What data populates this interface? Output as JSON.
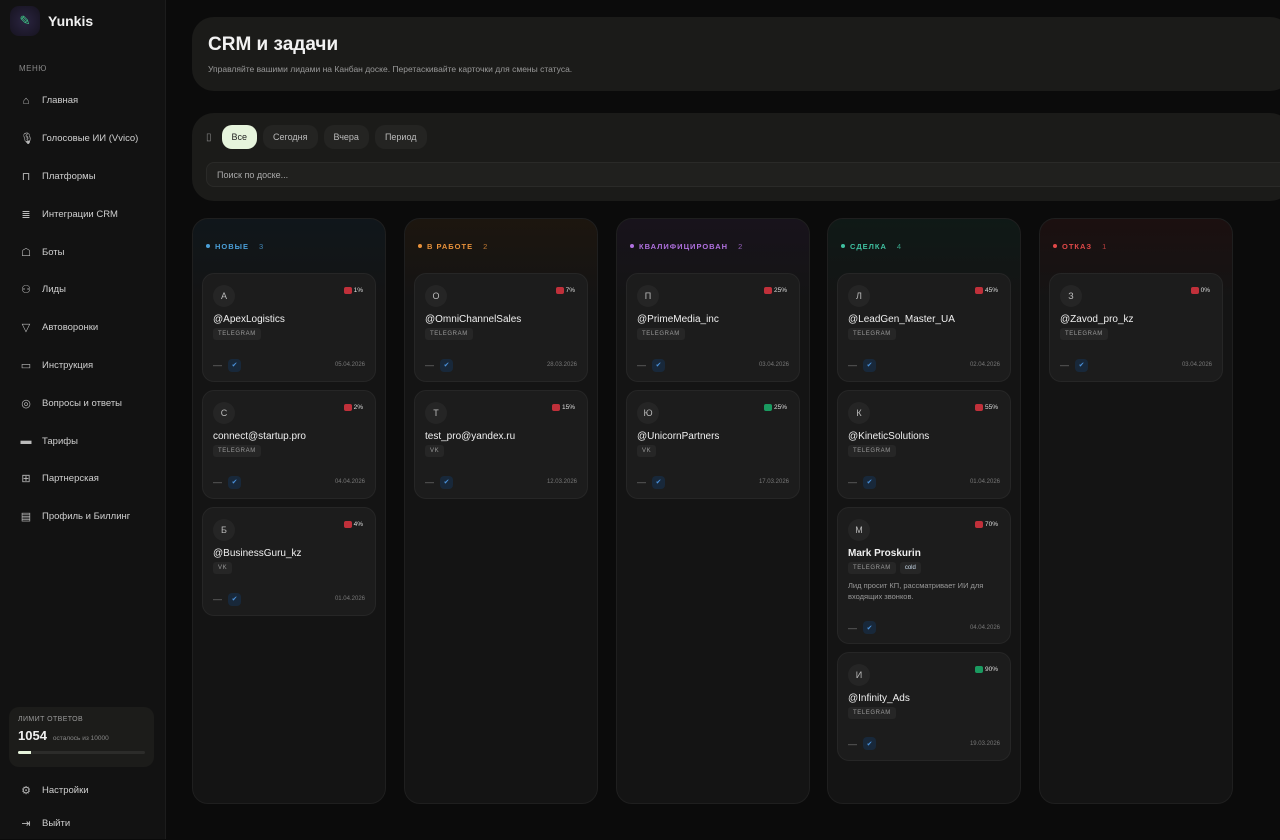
{
  "app": {
    "name": "Yunkis"
  },
  "sidebar": {
    "menu_label": "МЕНЮ",
    "items": [
      {
        "label": "Главная",
        "icon": "home-icon"
      },
      {
        "label": "Голосовые ИИ (Vvico)",
        "icon": "microphone-icon"
      },
      {
        "label": "Платформы",
        "icon": "bag-icon"
      },
      {
        "label": "Интеграции CRM",
        "icon": "database-icon"
      },
      {
        "label": "Боты",
        "icon": "bot-icon"
      },
      {
        "label": "Лиды",
        "icon": "users-icon"
      },
      {
        "label": "Автоворонки",
        "icon": "funnel-icon"
      },
      {
        "label": "Инструкция",
        "icon": "book-icon"
      },
      {
        "label": "Вопросы и ответы",
        "icon": "help-icon"
      },
      {
        "label": "Тарифы",
        "icon": "card-icon"
      },
      {
        "label": "Партнерская",
        "icon": "partner-icon"
      },
      {
        "label": "Профиль и Биллинг",
        "icon": "document-icon"
      }
    ],
    "limit": {
      "label": "ЛИМИТ ОТВЕТОВ",
      "value": "1054",
      "sub": "осталось из 10000",
      "progress_percent": 10.5,
      "color": "#e6f4dc"
    },
    "settings": "Настройки",
    "logout": "Выйти"
  },
  "header": {
    "title": "CRM и задачи",
    "subtitle": "Управляйте вашими лидами на Канбан доске. Перетаскивайте карточки для смены статуса."
  },
  "filters": {
    "chips": [
      "Все",
      "Сегодня",
      "Вчера",
      "Период"
    ],
    "active": 0,
    "search_placeholder": "Поиск по доске..."
  },
  "columns": [
    {
      "title": "НОВЫЕ",
      "count": "3",
      "color": "#4a9fd8",
      "cards": [
        {
          "initial": "А",
          "name": "@ApexLogistics",
          "tags": [
            "TELEGRAM"
          ],
          "percent": "1%",
          "date": "05.04.2026",
          "hot": true
        },
        {
          "initial": "С",
          "name": "connect@startup.pro",
          "tags": [
            "TELEGRAM"
          ],
          "percent": "2%",
          "date": "04.04.2026",
          "hot": true
        },
        {
          "initial": "Б",
          "name": "@BusinessGuru_kz",
          "tags": [
            "VK"
          ],
          "percent": "4%",
          "date": "01.04.2026",
          "hot": true
        }
      ]
    },
    {
      "title": "В РАБОТЕ",
      "count": "2",
      "color": "#e8913a",
      "cards": [
        {
          "initial": "О",
          "name": "@OmniChannelSales",
          "tags": [
            "TELEGRAM"
          ],
          "percent": "7%",
          "date": "28.03.2026",
          "hot": true
        },
        {
          "initial": "Т",
          "name": "test_pro@yandex.ru",
          "tags": [
            "VK"
          ],
          "percent": "15%",
          "date": "12.03.2026",
          "hot": true
        }
      ]
    },
    {
      "title": "КВАЛИФИЦИРОВАН",
      "count": "2",
      "color": "#b070e0",
      "cards": [
        {
          "initial": "П",
          "name": "@PrimeMedia_inc",
          "tags": [
            "TELEGRAM"
          ],
          "percent": "25%",
          "date": "03.04.2026",
          "hot": true
        },
        {
          "initial": "Ю",
          "name": "@UnicornPartners",
          "tags": [
            "VK"
          ],
          "percent": "25%",
          "date": "17.03.2026",
          "hot": false
        }
      ]
    },
    {
      "title": "СДЕЛКА",
      "count": "4",
      "color": "#3fc0a0",
      "cards": [
        {
          "initial": "Л",
          "name": "@LeadGen_Master_UA",
          "tags": [
            "TELEGRAM"
          ],
          "percent": "45%",
          "date": "02.04.2026",
          "hot": true
        },
        {
          "initial": "К",
          "name": "@KineticSolutions",
          "tags": [
            "TELEGRAM"
          ],
          "percent": "55%",
          "date": "01.04.2026",
          "hot": true
        },
        {
          "initial": "М",
          "name": "Mark Proskurin",
          "tags": [
            "TELEGRAM",
            "cold"
          ],
          "percent": "70%",
          "date": "04.04.2026",
          "hot": true,
          "note": "Лид просит КП, рассматривает ИИ для входящих звонков."
        },
        {
          "initial": "И",
          "name": "@Infinity_Ads",
          "tags": [
            "TELEGRAM"
          ],
          "percent": "90%",
          "date": "19.03.2026",
          "hot": false
        }
      ]
    },
    {
      "title": "ОТКАЗ",
      "count": "1",
      "color": "#e04848",
      "cards": [
        {
          "initial": "З",
          "name": "@Zavod_pro_kz",
          "tags": [
            "TELEGRAM"
          ],
          "percent": "0%",
          "date": "03.04.2026",
          "hot": true
        }
      ]
    }
  ]
}
